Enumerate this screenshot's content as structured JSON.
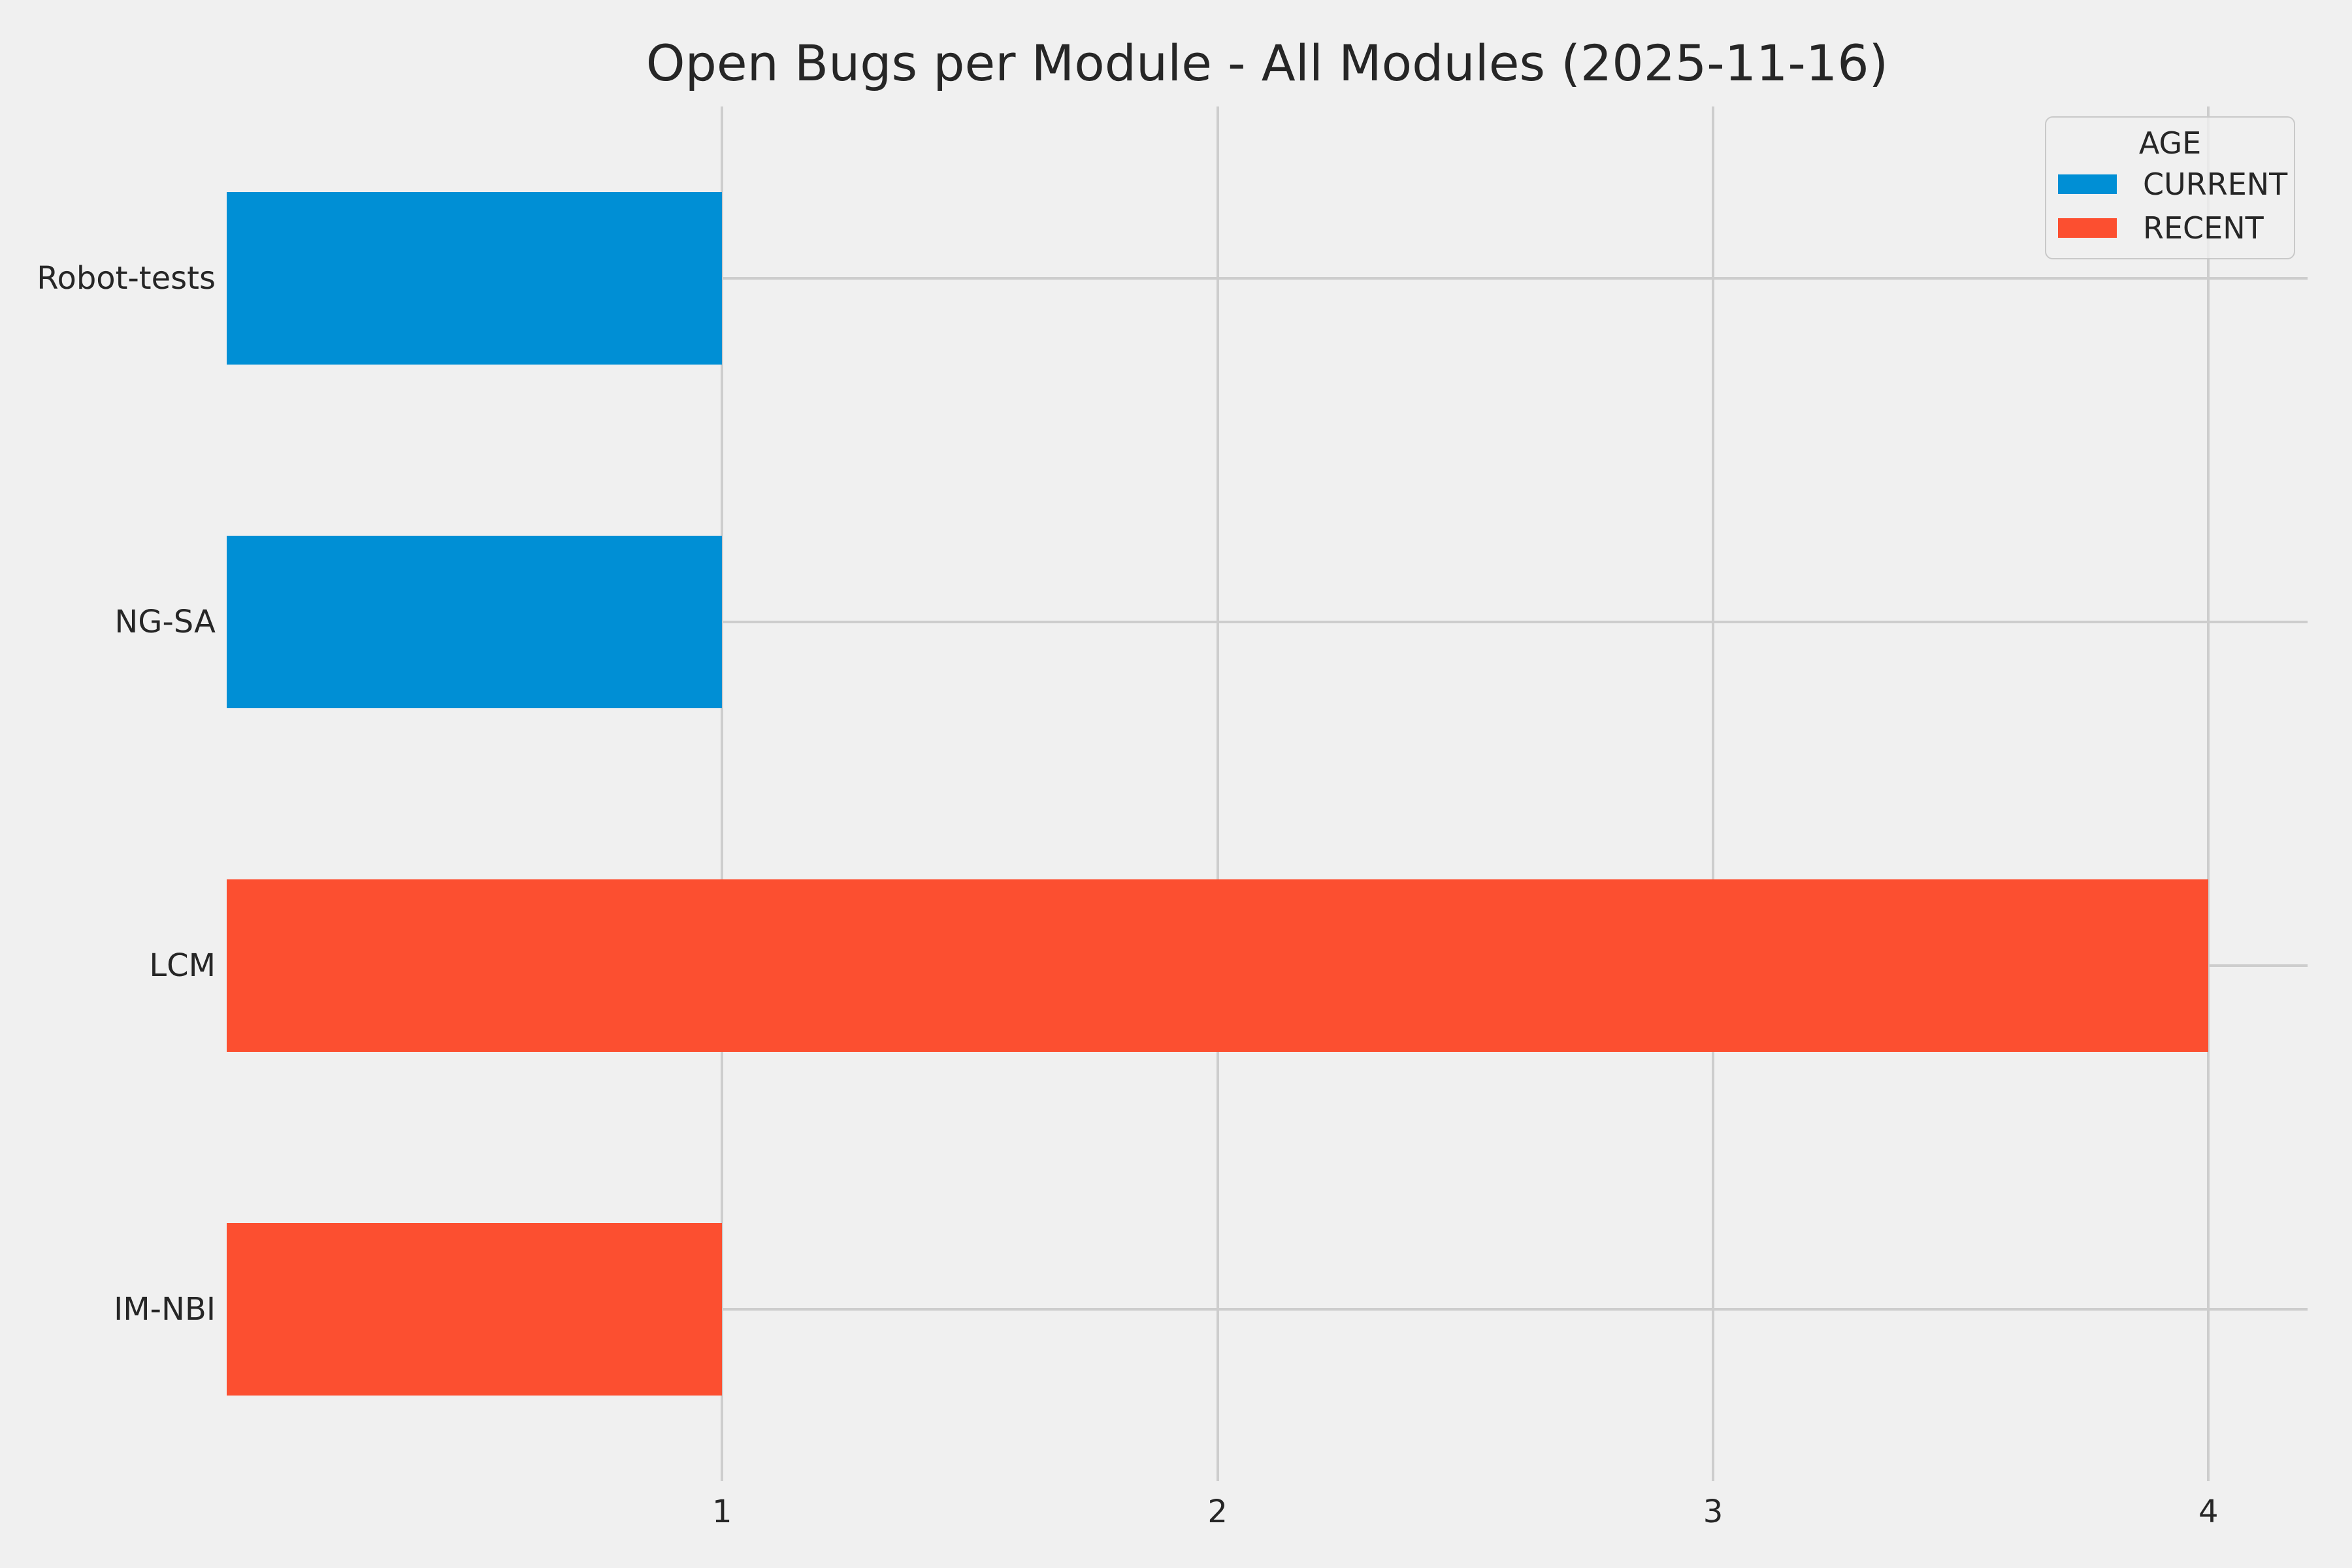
{
  "figure": {
    "background": "#f0f0f0"
  },
  "chart_data": {
    "type": "bar",
    "orientation": "horizontal",
    "title": "Open Bugs per Module - All Modules (2025-11-16)",
    "categories": [
      "Robot-tests",
      "NG-SA",
      "LCM",
      "IM-NBI"
    ],
    "values": [
      1,
      1,
      4,
      1
    ],
    "series_of_bar": [
      "CURRENT",
      "CURRENT",
      "RECENT",
      "RECENT"
    ],
    "xticks": [
      "1",
      "2",
      "3",
      "4"
    ],
    "xlim": [
      0,
      4.2
    ],
    "grid": true,
    "xlabel": "",
    "ylabel": "",
    "legend": {
      "title": "AGE",
      "position": "upper right",
      "entries": [
        {
          "label": "CURRENT",
          "color": "#008fd5"
        },
        {
          "label": "RECENT",
          "color": "#fc4f30"
        }
      ]
    },
    "colors": {
      "background": "#f0f0f0",
      "grid": "#cdcdcd",
      "text": "#262626"
    }
  }
}
